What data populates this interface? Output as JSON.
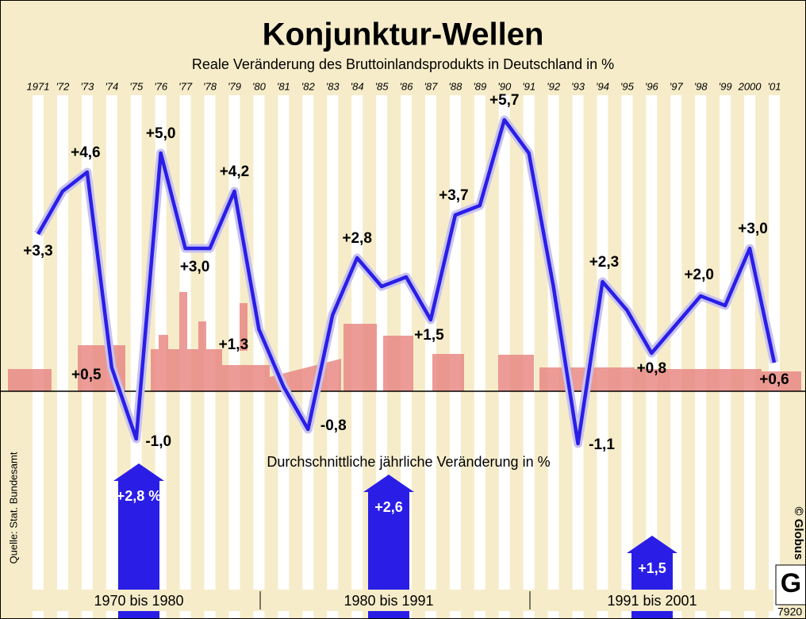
{
  "chart_data": [
    {
      "type": "line",
      "title": "Konjunktur-Wellen",
      "subtitle": "Reale Veränderung des Bruttoinlandsprodukts in Deutschland in %",
      "categories": [
        "1971",
        "'72",
        "'73",
        "'74",
        "'75",
        "'76",
        "'77",
        "'78",
        "'79",
        "'80",
        "'81",
        "'82",
        "'83",
        "'84",
        "'85",
        "'86",
        "'87",
        "'88",
        "'89",
        "'90",
        "'91",
        "'92",
        "'93",
        "'94",
        "'95",
        "'96",
        "'97",
        "'98",
        "'99",
        "2000",
        "'01"
      ],
      "values": [
        3.3,
        4.2,
        4.6,
        0.5,
        -1.0,
        5.0,
        3.0,
        3.0,
        4.2,
        1.3,
        0.1,
        -0.8,
        1.6,
        2.8,
        2.2,
        2.4,
        1.5,
        3.7,
        3.9,
        5.7,
        5.0,
        2.2,
        -1.1,
        2.3,
        1.7,
        0.8,
        1.4,
        2.0,
        1.8,
        3.0,
        0.6
      ],
      "value_labels": [
        "+3,3",
        null,
        "+4,6",
        "+0,5",
        "-1,0",
        "+5,0",
        "+3,0",
        null,
        "+4,2",
        "+1,3",
        null,
        "-0,8",
        null,
        "+2,8",
        null,
        null,
        "+1,5",
        "+3,7",
        null,
        "+5,7",
        null,
        null,
        "-1,1",
        "+2,3",
        null,
        "+0,8",
        null,
        "+2,0",
        null,
        "+3,0",
        "+0,6"
      ],
      "color": "#2a1ee6",
      "ylim": [
        -1.5,
        6
      ]
    },
    {
      "type": "bar",
      "title": "Durchschnittliche jährliche Veränderung in %",
      "categories": [
        "1970 bis 1980",
        "1980 bis 1991",
        "1991 bis 2001"
      ],
      "values": [
        2.8,
        2.6,
        1.5
      ],
      "value_labels": [
        "+2,8 %",
        "+2,6",
        "+1,5"
      ],
      "color": "#2a1ee6"
    }
  ],
  "source": "Quelle: Stat. Bundesamt",
  "credit": "© Globus",
  "code": "7920"
}
